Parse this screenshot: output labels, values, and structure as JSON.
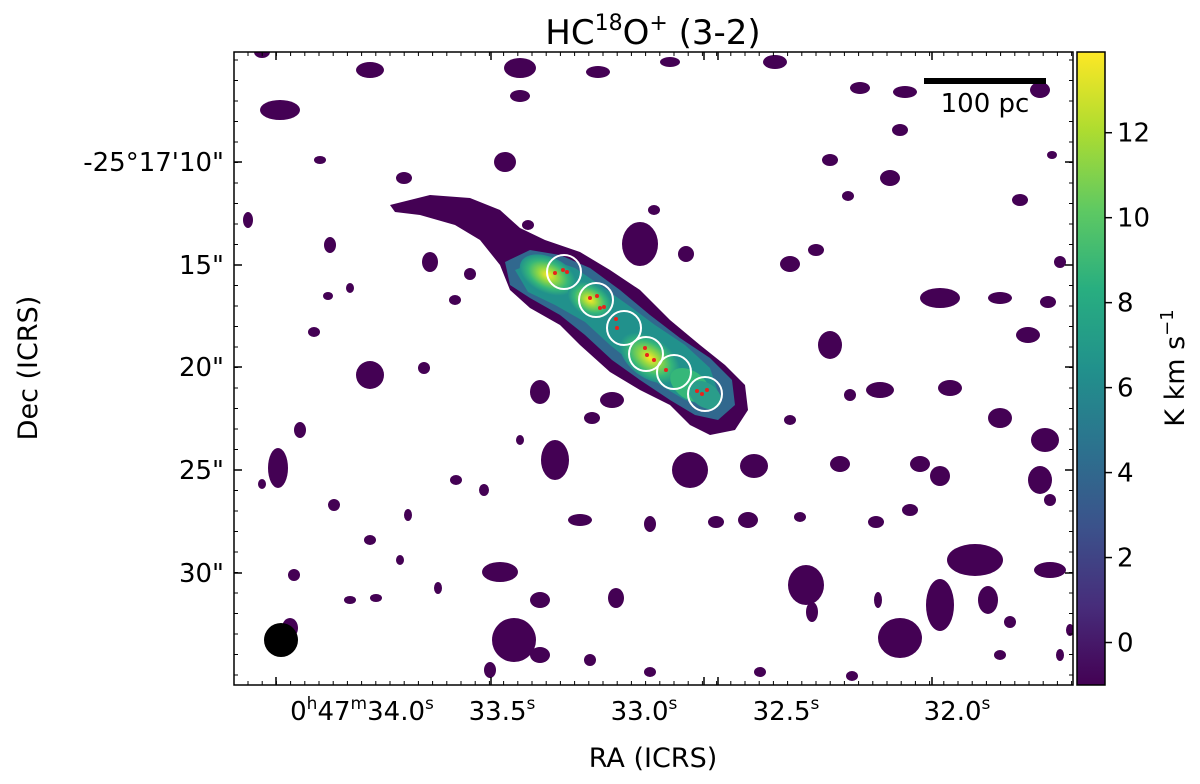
{
  "chart_data": {
    "type": "heatmap",
    "title": {
      "prefix": "HC",
      "sup1": "18",
      "mid": "O",
      "sup2": "+",
      "suffix": " (3-2)"
    },
    "xlabel": "RA (ICRS)",
    "ylabel": "Dec (ICRS)",
    "x_ticks": [
      {
        "main": "0",
        "unit1": "h",
        "mid": "47",
        "unit2": "m",
        "sec": "34.0",
        "unit3": "s"
      },
      {
        "sec": "33.5",
        "unit3": "s"
      },
      {
        "sec": "33.0",
        "unit3": "s"
      },
      {
        "sec": "32.5",
        "unit3": "s"
      },
      {
        "sec": "32.0",
        "unit3": "s"
      }
    ],
    "y_ticks": [
      "-25°17'10\"",
      "15\"",
      "20\"",
      "25\"",
      "30\""
    ],
    "colorbar": {
      "label": "K km s",
      "label_sup": "−1",
      "range": [
        -1.0,
        13.9
      ],
      "ticks": [
        "0",
        "2",
        "4",
        "6",
        "8",
        "10",
        "12"
      ],
      "colormap": "viridis"
    },
    "scalebar_label": "100 pc",
    "apertures": 6,
    "beam": "filled-circle-bottom-left"
  }
}
